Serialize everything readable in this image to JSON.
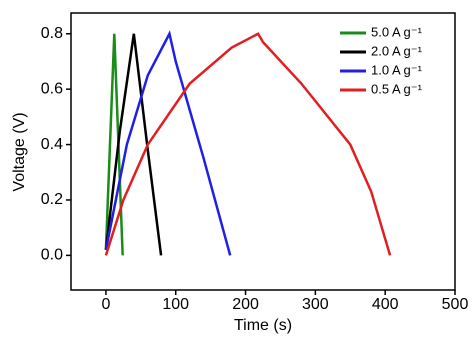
{
  "chart_data": {
    "type": "line",
    "x_label": "Time (s)",
    "y_label": "Voltage (V)",
    "xlim": [
      -50,
      500
    ],
    "xticks": [
      0,
      100,
      200,
      300,
      400,
      500
    ],
    "ylim": [
      -0.125,
      0.875
    ],
    "yticks": [
      {
        "value": 0,
        "label": "0.0"
      },
      0.2,
      0.4,
      0.6,
      0.8
    ],
    "legend": "top-right",
    "series": [
      {
        "name": "5.0 A g⁻¹",
        "color": "#1a8c1a",
        "x": [
          0,
          12,
          24
        ],
        "values": [
          0.02,
          0.8,
          0
        ]
      },
      {
        "name": "2.0 A g⁻¹",
        "color": "#000000",
        "x": [
          0,
          20,
          40,
          60,
          79
        ],
        "values": [
          0.02,
          0.45,
          0.8,
          0.38,
          0
        ]
      },
      {
        "name": "1.0 A g⁻¹",
        "color": "#1f1fe6",
        "x": [
          0,
          30,
          60,
          91,
          100,
          140,
          178
        ],
        "values": [
          0.02,
          0.4,
          0.65,
          0.8,
          0.7,
          0.35,
          0
        ]
      },
      {
        "name": "0.5 A g⁻¹",
        "color": "#e02020",
        "x": [
          0,
          25,
          60,
          120,
          180,
          218,
          225,
          280,
          350,
          380,
          407
        ],
        "values": [
          0,
          0.2,
          0.4,
          0.62,
          0.75,
          0.8,
          0.77,
          0.62,
          0.4,
          0.23,
          0
        ]
      }
    ]
  }
}
